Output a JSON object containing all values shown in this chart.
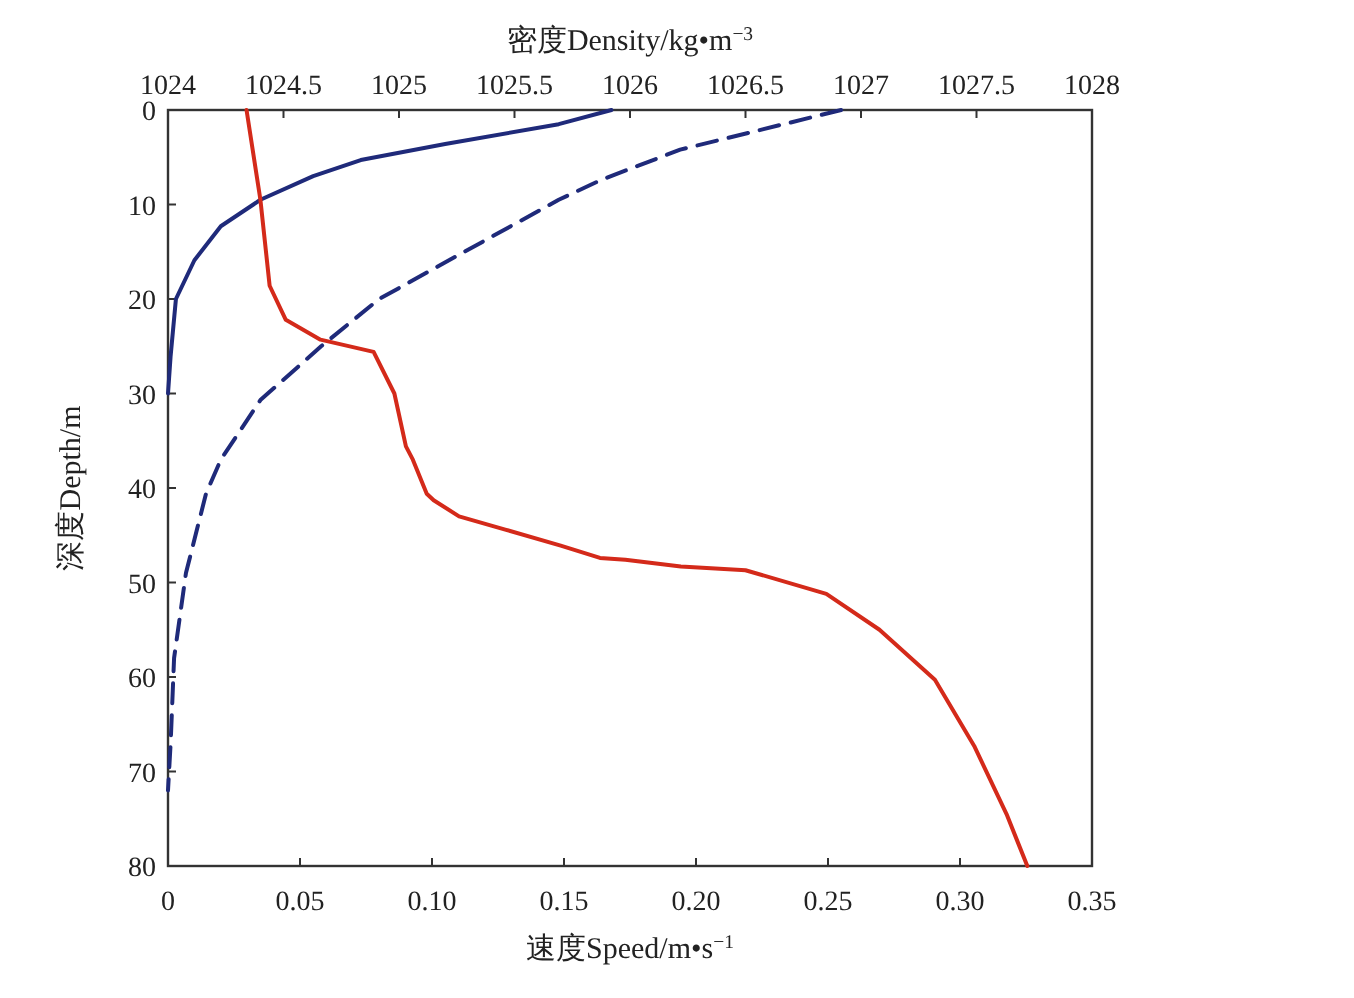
{
  "chart_data": {
    "type": "line",
    "xlabel": "速度Speed/m•s$^{−1}$",
    "x2label": "密度Density/kg•m$^{−3}$",
    "ylabel": "深度Depth/m",
    "xlim": [
      0,
      0.35
    ],
    "xticks": [
      0,
      0.05,
      {
        "value": 0.1,
        "label": "0.10"
      },
      0.15,
      {
        "value": 0.2,
        "label": "0.20"
      },
      0.25,
      {
        "value": 0.3,
        "label": "0.30"
      },
      0.35
    ],
    "x2lim": [
      1024,
      1028
    ],
    "x2ticks": [
      1024,
      1024.5,
      1025,
      1025.5,
      1026,
      1026.5,
      1027,
      1027.5,
      1028
    ],
    "ylim": [
      80,
      0
    ],
    "yticks": [
      0,
      10,
      20,
      30,
      40,
      50,
      60,
      70,
      80
    ],
    "series": [
      {
        "color": "#1f2a7a",
        "line_style": "solid",
        "x": [
          0.168,
          0.148,
          0.105,
          0.073,
          0.055,
          0.035,
          0.02,
          0.01,
          0.003,
          0.001,
          0
        ],
        "values": [
          0,
          1.5,
          3.6,
          5.3,
          7,
          9.5,
          12.3,
          15.9,
          20,
          26,
          30
        ]
      },
      {
        "color": "#1f2a7a",
        "line_style": "dashed",
        "x": [
          0.255,
          0.194,
          0.164,
          0.148,
          0.111,
          0.08,
          0.058,
          0.035,
          0.02,
          0.0144,
          0.0068,
          0.0023,
          0.001,
          0
        ],
        "values": [
          0,
          4.2,
          7.4,
          9.5,
          15.2,
          20,
          25,
          30.7,
          37,
          40.6,
          49,
          58,
          67,
          72
        ]
      },
      {
        "color": "#d42a1a",
        "line_style": "solid",
        "axis": "x2",
        "x": [
          1024.34,
          1024.4,
          1024.44,
          1024.51,
          1024.66,
          1024.89,
          1024.98,
          1025.03,
          1025.06,
          1025.12,
          1025.15,
          1025.26,
          1025.46,
          1025.7,
          1025.87,
          1025.98,
          1026.22,
          1026.5,
          1026.85,
          1027.08,
          1027.32,
          1027.49,
          1027.63,
          1027.71,
          1027.72
        ],
        "values": [
          0,
          9.5,
          18.6,
          22.2,
          24.3,
          25.6,
          30,
          35.6,
          37,
          40.6,
          41.3,
          43,
          44.4,
          46.1,
          47.4,
          47.6,
          48.3,
          48.7,
          51.2,
          55,
          60.3,
          67.3,
          74.5,
          79.4,
          80
        ]
      }
    ]
  }
}
